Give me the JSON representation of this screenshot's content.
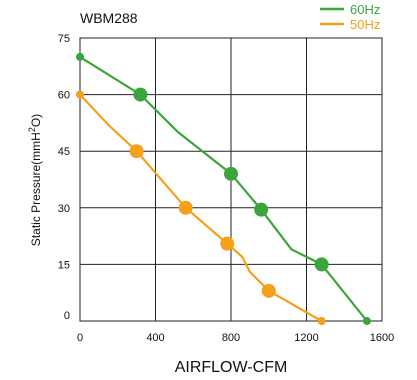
{
  "chart_data": {
    "type": "line",
    "title": "WBM288",
    "xlabel": "AIRFLOW-CFM",
    "ylabel": {
      "prefix": "Static Pressure(mmH",
      "sup": "2",
      "suffix": "O)"
    },
    "xlim": [
      0,
      1600
    ],
    "ylim": [
      0,
      75
    ],
    "xticks": [
      "0",
      "400",
      "800",
      "1200",
      "1600"
    ],
    "yticks": [
      "0",
      "15",
      "30",
      "45",
      "60",
      "75"
    ],
    "grid": true,
    "legend_position": "top-right",
    "series": [
      {
        "name": "60Hz",
        "color": "#3aa53a",
        "path": [
          [
            0,
            70
          ],
          [
            320,
            60
          ],
          [
            520,
            50
          ],
          [
            800,
            39
          ],
          [
            960,
            29.5
          ],
          [
            1120,
            19
          ],
          [
            1280,
            15
          ],
          [
            1520,
            0
          ]
        ],
        "markers": [
          [
            0,
            70,
            "small"
          ],
          [
            320,
            60,
            "large"
          ],
          [
            800,
            39,
            "large"
          ],
          [
            960,
            29.5,
            "large"
          ],
          [
            1280,
            15,
            "large"
          ],
          [
            1520,
            0,
            "small"
          ]
        ]
      },
      {
        "name": "50Hz",
        "color": "#f5a01a",
        "path": [
          [
            0,
            60
          ],
          [
            150,
            52
          ],
          [
            300,
            45
          ],
          [
            560,
            30
          ],
          [
            780,
            20.5
          ],
          [
            860,
            17
          ],
          [
            900,
            13
          ],
          [
            1000,
            8
          ],
          [
            1280,
            0
          ]
        ],
        "markers": [
          [
            0,
            60,
            "small"
          ],
          [
            300,
            45,
            "large"
          ],
          [
            560,
            30,
            "large"
          ],
          [
            780,
            20.5,
            "large"
          ],
          [
            1000,
            8,
            "large"
          ],
          [
            1280,
            0,
            "small"
          ]
        ]
      }
    ]
  }
}
